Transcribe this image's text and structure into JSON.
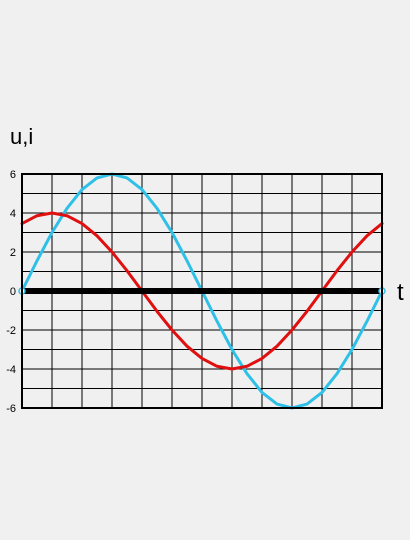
{
  "chart_data": {
    "type": "line",
    "ylabel": "u,i",
    "xlabel": "t",
    "ylim": [
      -6,
      6
    ],
    "y_ticks": [
      "6",
      "4",
      "2",
      "0",
      "-2",
      "-4",
      "-6"
    ],
    "grid": true,
    "x": [
      0,
      15,
      30,
      45,
      60,
      75,
      90,
      105,
      120,
      135,
      150,
      165,
      180,
      195,
      210,
      225,
      240,
      255,
      270,
      285,
      300,
      315,
      330,
      345,
      360
    ],
    "series": [
      {
        "color": "#2fc0e8",
        "values": [
          0,
          1.55,
          3,
          4.24,
          5.2,
          5.8,
          6,
          5.8,
          5.2,
          4.24,
          3,
          1.55,
          0,
          -1.55,
          -3,
          -4.24,
          -5.2,
          -5.8,
          -6,
          -5.8,
          -5.2,
          -4.24,
          -3,
          -1.55,
          0
        ]
      },
      {
        "color": "#e01010",
        "values": [
          3.46,
          3.86,
          4,
          3.86,
          3.46,
          2.83,
          2,
          1.04,
          0,
          -1.04,
          -2,
          -2.83,
          -3.46,
          -3.86,
          -4,
          -3.86,
          -3.46,
          -2.83,
          -2,
          -1.04,
          0,
          1.04,
          2,
          2.83,
          3.46
        ]
      }
    ],
    "zero_axis_color": "#000000"
  }
}
